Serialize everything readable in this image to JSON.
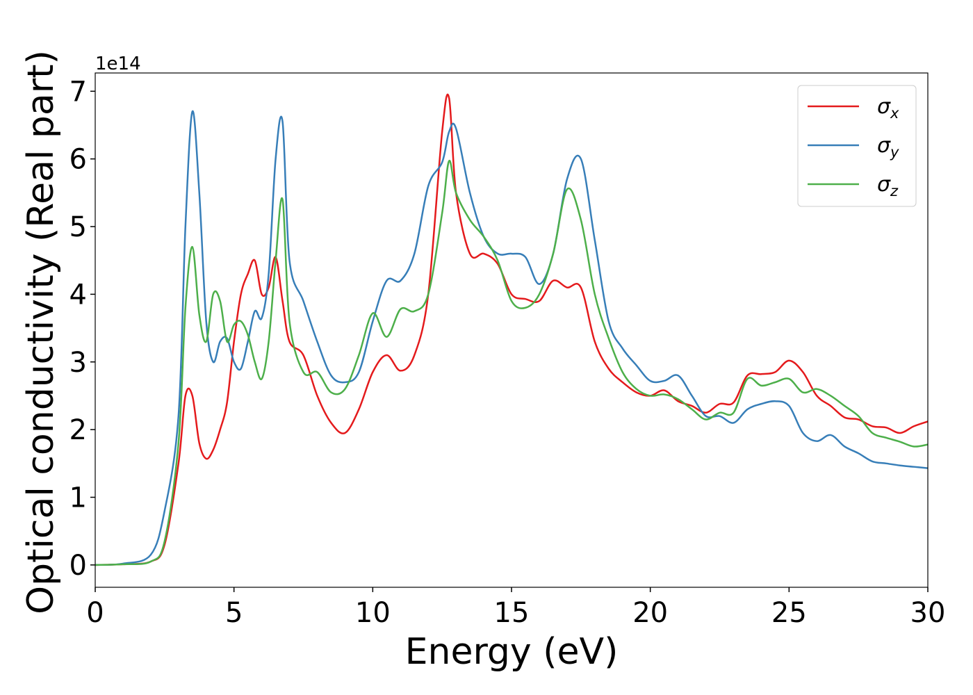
{
  "chart_data": {
    "type": "line",
    "xlabel": "Energy (eV)",
    "ylabel": "Optical conductivity (Real part)",
    "y_offset_label": "1e14",
    "x": [
      0,
      1,
      2,
      2.5,
      3,
      3.25,
      3.5,
      3.75,
      4,
      4.25,
      4.5,
      4.75,
      5,
      5.25,
      5.5,
      5.75,
      6,
      6.25,
      6.5,
      6.75,
      7,
      7.5,
      8,
      8.5,
      9,
      9.5,
      10,
      10.5,
      11,
      11.5,
      12,
      12.5,
      12.75,
      13,
      13.5,
      14,
      14.5,
      15,
      15.5,
      16,
      16.5,
      17,
      17.5,
      18,
      18.5,
      19,
      19.5,
      20,
      20.5,
      21,
      21.5,
      22,
      22.5,
      23,
      23.5,
      24,
      24.5,
      25,
      25.5,
      26,
      26.5,
      27,
      27.5,
      28,
      28.5,
      29,
      29.5,
      30
    ],
    "series": [
      {
        "name": "σx",
        "color": "#e41a1c",
        "values": [
          0,
          0.01,
          0.05,
          0.3,
          1.5,
          2.5,
          2.5,
          1.8,
          1.57,
          1.7,
          2.0,
          2.4,
          3.3,
          4.0,
          4.3,
          4.5,
          4.0,
          4.1,
          4.55,
          3.9,
          3.3,
          3.1,
          2.5,
          2.1,
          1.95,
          2.3,
          2.85,
          3.1,
          2.87,
          3.1,
          4.0,
          6.4,
          6.9,
          5.5,
          4.6,
          4.6,
          4.45,
          4.0,
          3.93,
          3.9,
          4.2,
          4.1,
          4.1,
          3.3,
          2.9,
          2.7,
          2.55,
          2.5,
          2.58,
          2.42,
          2.35,
          2.25,
          2.38,
          2.4,
          2.8,
          2.82,
          2.85,
          3.02,
          2.85,
          2.5,
          2.35,
          2.18,
          2.15,
          2.05,
          2.03,
          1.95,
          2.05,
          2.12
        ]
      },
      {
        "name": "σy",
        "color": "#377eb8",
        "values": [
          0,
          0.02,
          0.15,
          0.8,
          2.2,
          5.0,
          6.7,
          5.5,
          3.6,
          3.0,
          3.3,
          3.35,
          3.0,
          2.9,
          3.3,
          3.75,
          3.65,
          4.3,
          6.0,
          6.55,
          4.5,
          3.9,
          3.3,
          2.8,
          2.7,
          2.85,
          3.6,
          4.2,
          4.2,
          4.6,
          5.6,
          5.95,
          6.4,
          6.45,
          5.5,
          4.85,
          4.6,
          4.6,
          4.55,
          4.15,
          4.6,
          5.7,
          6.0,
          4.8,
          3.6,
          3.2,
          2.95,
          2.72,
          2.72,
          2.8,
          2.5,
          2.2,
          2.2,
          2.1,
          2.3,
          2.38,
          2.42,
          2.35,
          1.95,
          1.83,
          1.92,
          1.75,
          1.65,
          1.53,
          1.5,
          1.47,
          1.45,
          1.43
        ]
      },
      {
        "name": "σz",
        "color": "#4daf4a",
        "values": [
          0,
          0.01,
          0.05,
          0.35,
          1.8,
          3.8,
          4.7,
          3.7,
          3.3,
          4.0,
          3.9,
          3.3,
          3.55,
          3.6,
          3.4,
          3.0,
          2.75,
          3.3,
          4.5,
          5.4,
          3.6,
          2.85,
          2.85,
          2.55,
          2.6,
          3.1,
          3.72,
          3.37,
          3.78,
          3.75,
          4.0,
          5.2,
          5.97,
          5.5,
          5.1,
          4.85,
          4.5,
          3.9,
          3.8,
          4.0,
          4.6,
          5.55,
          5.1,
          4.0,
          3.35,
          2.85,
          2.6,
          2.5,
          2.52,
          2.45,
          2.3,
          2.15,
          2.25,
          2.25,
          2.75,
          2.65,
          2.7,
          2.75,
          2.55,
          2.6,
          2.5,
          2.35,
          2.2,
          1.95,
          1.88,
          1.82,
          1.75,
          1.78
        ]
      }
    ],
    "xlim": [
      0,
      30
    ],
    "xticks": [
      0,
      5,
      10,
      15,
      20,
      25,
      30
    ],
    "ylim": [
      -0.33,
      7.27
    ],
    "yticks": [
      0,
      1,
      2,
      3,
      4,
      5,
      6,
      7
    ],
    "grid": false,
    "legend": "upper right"
  }
}
